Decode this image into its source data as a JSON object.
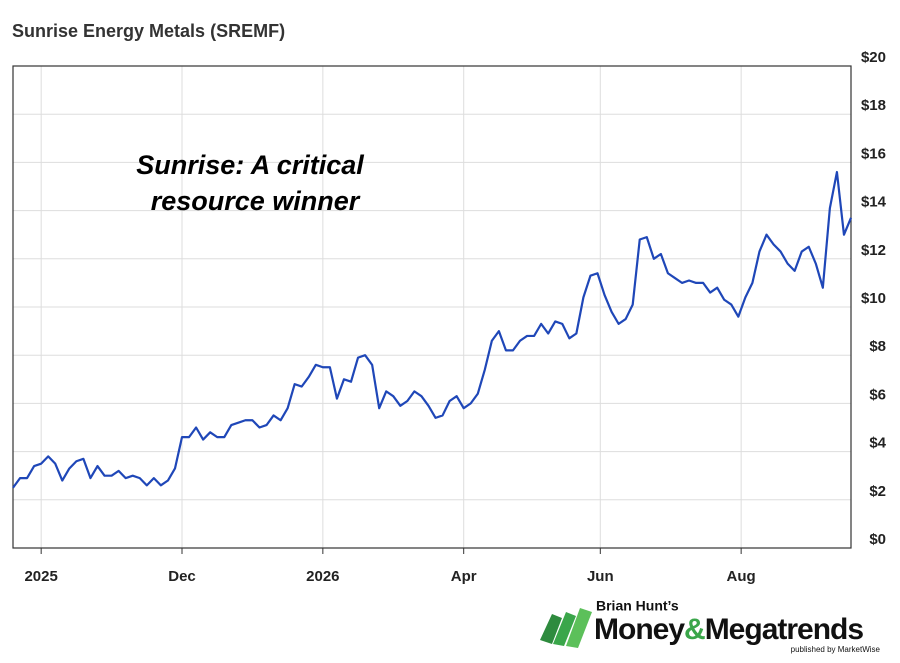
{
  "chart_data": {
    "type": "line",
    "title": "Sunrise Energy Metals (SREMF)",
    "annotation": [
      "Sunrise: A critical",
      "resource winner"
    ],
    "series": [
      {
        "name": "SREMF",
        "color": "#1f47b8",
        "values": [
          2.5,
          2.9,
          2.9,
          3.4,
          3.5,
          3.8,
          3.5,
          2.8,
          3.3,
          3.6,
          3.7,
          2.9,
          3.4,
          3.0,
          3.0,
          3.2,
          2.9,
          3.0,
          2.9,
          2.6,
          2.9,
          2.6,
          2.8,
          3.3,
          4.6,
          4.6,
          5.0,
          4.5,
          4.8,
          4.6,
          4.6,
          5.1,
          5.2,
          5.3,
          5.3,
          5.0,
          5.1,
          5.5,
          5.3,
          5.8,
          6.8,
          6.7,
          7.1,
          7.6,
          7.5,
          7.5,
          6.2,
          7.0,
          6.9,
          7.9,
          8.0,
          7.6,
          5.8,
          6.5,
          6.3,
          5.9,
          6.1,
          6.5,
          6.3,
          5.9,
          5.4,
          5.5,
          6.1,
          6.3,
          5.8,
          6.0,
          6.4,
          7.4,
          8.6,
          9.0,
          8.2,
          8.2,
          8.6,
          8.8,
          8.8,
          9.3,
          8.9,
          9.4,
          9.3,
          8.7,
          8.9,
          10.4,
          11.3,
          11.4,
          10.5,
          9.8,
          9.3,
          9.5,
          10.1,
          12.8,
          12.9,
          12.0,
          12.2,
          11.4,
          11.2,
          11.0,
          11.1,
          11.0,
          11.0,
          10.6,
          10.8,
          10.3,
          10.1,
          9.6,
          10.4,
          11.0,
          12.3,
          13.0,
          12.6,
          12.3,
          11.8,
          11.5,
          12.3,
          12.5,
          11.8,
          10.8,
          14.1,
          15.6,
          13.0,
          13.7
        ]
      }
    ],
    "xlim": [
      0,
      119
    ],
    "xticks": [
      {
        "value": 4,
        "label": "2025"
      },
      {
        "value": 24,
        "label": "Dec"
      },
      {
        "value": 44,
        "label": "2026"
      },
      {
        "value": 64,
        "label": "Apr"
      },
      {
        "value": 83.4,
        "label": "Jun"
      },
      {
        "value": 103.4,
        "label": "Aug"
      }
    ],
    "ylim": [
      0,
      20
    ],
    "yticks": [
      {
        "value": 0,
        "label": "$0"
      },
      {
        "value": 2,
        "label": "$2"
      },
      {
        "value": 4,
        "label": "$4"
      },
      {
        "value": 6,
        "label": "$6"
      },
      {
        "value": 8,
        "label": "$8"
      },
      {
        "value": 10,
        "label": "$10"
      },
      {
        "value": 12,
        "label": "$12"
      },
      {
        "value": 14,
        "label": "$14"
      },
      {
        "value": 16,
        "label": "$16"
      },
      {
        "value": 18,
        "label": "$18"
      },
      {
        "value": 20,
        "label": "$20"
      }
    ],
    "grid": true
  },
  "branding": {
    "byline": "Brian Hunt’s",
    "name": [
      "Money",
      "&",
      "Megatrends"
    ],
    "publisher": "published by MarketWise"
  }
}
